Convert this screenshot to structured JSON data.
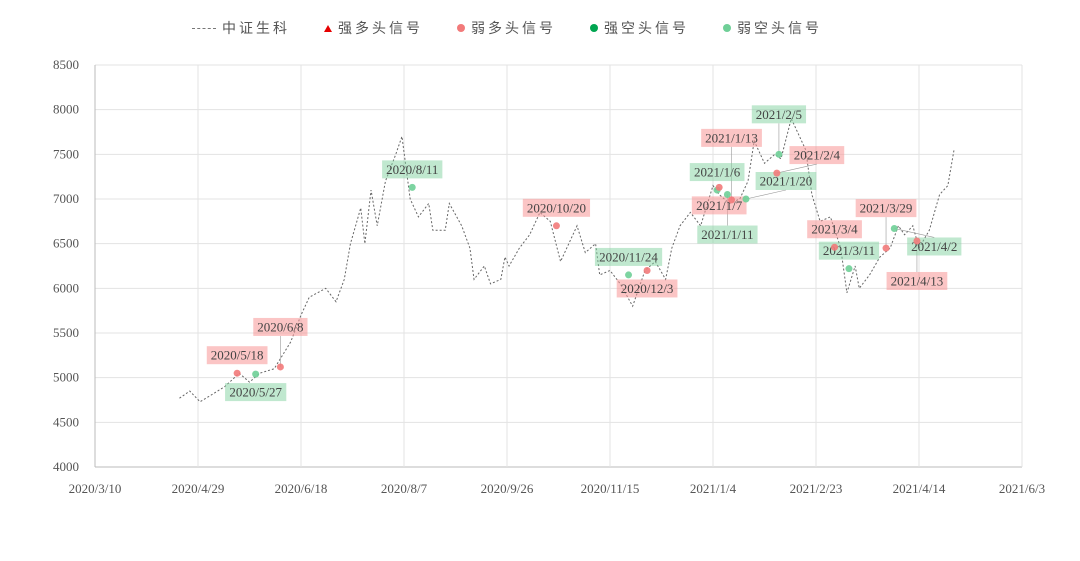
{
  "chart_data": {
    "type": "line",
    "title": "",
    "xlabel": "",
    "ylabel": "",
    "x_unit": "days since 2020/3/10",
    "xlim": [
      0,
      450
    ],
    "ylim": [
      4000,
      8500
    ],
    "grid": true,
    "legend_position": "top-center",
    "x_ticks": [
      {
        "day": 0,
        "label": "2020/3/10"
      },
      {
        "day": 50,
        "label": "2020/4/29"
      },
      {
        "day": 100,
        "label": "2020/6/18"
      },
      {
        "day": 150,
        "label": "2020/8/7"
      },
      {
        "day": 200,
        "label": "2020/9/26"
      },
      {
        "day": 250,
        "label": "2020/11/15"
      },
      {
        "day": 300,
        "label": "2021/1/4"
      },
      {
        "day": 350,
        "label": "2021/2/23"
      },
      {
        "day": 400,
        "label": "2021/4/14"
      },
      {
        "day": 450,
        "label": "2021/6/3"
      }
    ],
    "y_ticks": [
      "4000",
      "4500",
      "5000",
      "5500",
      "6000",
      "6500",
      "7000",
      "7500",
      "8000",
      "8500"
    ],
    "legend": [
      {
        "name": "中证生科",
        "kind": "dashed-line",
        "color": "#777777"
      },
      {
        "name": "强多头信号",
        "kind": "triangle",
        "color": "#e60000"
      },
      {
        "name": "弱多头信号",
        "kind": "circle",
        "color": "#f27a7a"
      },
      {
        "name": "强空头信号",
        "kind": "circle",
        "color": "#00a550"
      },
      {
        "name": "弱空头信号",
        "kind": "circle",
        "color": "#6fcf97"
      }
    ],
    "series": [
      {
        "name": "中证生科",
        "x": [
          41,
          46,
          51,
          56,
          63,
          70,
          75,
          80,
          87,
          95,
          100,
          104,
          112,
          117,
          121,
          124,
          129,
          131,
          134,
          137,
          141,
          146,
          149,
          153,
          157,
          162,
          164,
          170,
          172,
          178,
          182,
          184,
          189,
          192,
          197,
          199,
          201,
          206,
          211,
          216,
          221,
          226,
          231,
          234,
          238,
          243,
          245,
          250,
          255,
          261,
          267,
          272,
          277,
          280,
          284,
          289,
          294,
          300,
          303,
          308,
          313,
          317,
          320,
          325,
          330,
          333,
          338,
          345,
          348,
          352,
          357,
          362,
          365,
          369,
          371,
          376,
          381,
          386,
          390,
          393,
          397,
          400,
          405,
          410,
          414,
          417
        ],
        "y": [
          4770,
          4850,
          4730,
          4800,
          4900,
          5050,
          4950,
          5050,
          5100,
          5400,
          5700,
          5900,
          6000,
          5850,
          6100,
          6500,
          6900,
          6500,
          7100,
          6700,
          7200,
          7500,
          7700,
          7000,
          6800,
          6950,
          6650,
          6650,
          6950,
          6700,
          6450,
          6100,
          6250,
          6050,
          6100,
          6350,
          6250,
          6450,
          6600,
          6850,
          6750,
          6300,
          6550,
          6700,
          6400,
          6500,
          6150,
          6200,
          6050,
          5800,
          6200,
          6300,
          6100,
          6450,
          6700,
          6850,
          6700,
          7150,
          7050,
          6950,
          7000,
          7200,
          7650,
          7400,
          7500,
          7450,
          7900,
          7550,
          7050,
          6750,
          6800,
          6450,
          5950,
          6250,
          6000,
          6150,
          6350,
          6450,
          6700,
          6600,
          6700,
          6450,
          6650,
          7050,
          7150,
          7550
        ]
      }
    ],
    "signals": [
      {
        "label": "2020/5/18",
        "day": 69,
        "value": 5050,
        "type": "weak_long"
      },
      {
        "label": "2020/5/27",
        "day": 78,
        "value": 5040,
        "type": "weak_short"
      },
      {
        "label": "2020/6/8",
        "day": 90,
        "value": 5120,
        "type": "weak_long"
      },
      {
        "label": "2020/8/11",
        "day": 154,
        "value": 7130,
        "type": "weak_short"
      },
      {
        "label": "2020/10/20",
        "day": 224,
        "value": 6700,
        "type": "weak_long"
      },
      {
        "label": "2020/11/24",
        "day": 259,
        "value": 6150,
        "type": "weak_short"
      },
      {
        "label": "2020/12/3",
        "day": 268,
        "value": 6200,
        "type": "weak_long"
      },
      {
        "label": "2021/1/6",
        "day": 302,
        "value": 7100,
        "type": "weak_short"
      },
      {
        "label": "2021/1/7",
        "day": 303,
        "value": 7130,
        "type": "weak_long"
      },
      {
        "label": "2021/1/11",
        "day": 307,
        "value": 7050,
        "type": "weak_short"
      },
      {
        "label": "2021/1/13",
        "day": 309,
        "value": 6990,
        "type": "weak_long"
      },
      {
        "label": "2021/1/20",
        "day": 316,
        "value": 7000,
        "type": "weak_short"
      },
      {
        "label": "2021/2/4",
        "day": 331,
        "value": 7290,
        "type": "weak_long"
      },
      {
        "label": "2021/2/5",
        "day": 332,
        "value": 7500,
        "type": "weak_short"
      },
      {
        "label": "2021/3/4",
        "day": 359,
        "value": 6460,
        "type": "weak_long"
      },
      {
        "label": "2021/3/11",
        "day": 366,
        "value": 6220,
        "type": "weak_short"
      },
      {
        "label": "2021/3/29",
        "day": 384,
        "value": 6450,
        "type": "weak_long"
      },
      {
        "label": "2021/4/2",
        "day": 388,
        "value": 6670,
        "type": "weak_short"
      },
      {
        "label": "2021/4/13",
        "day": 399,
        "value": 6530,
        "type": "weak_long"
      }
    ]
  }
}
